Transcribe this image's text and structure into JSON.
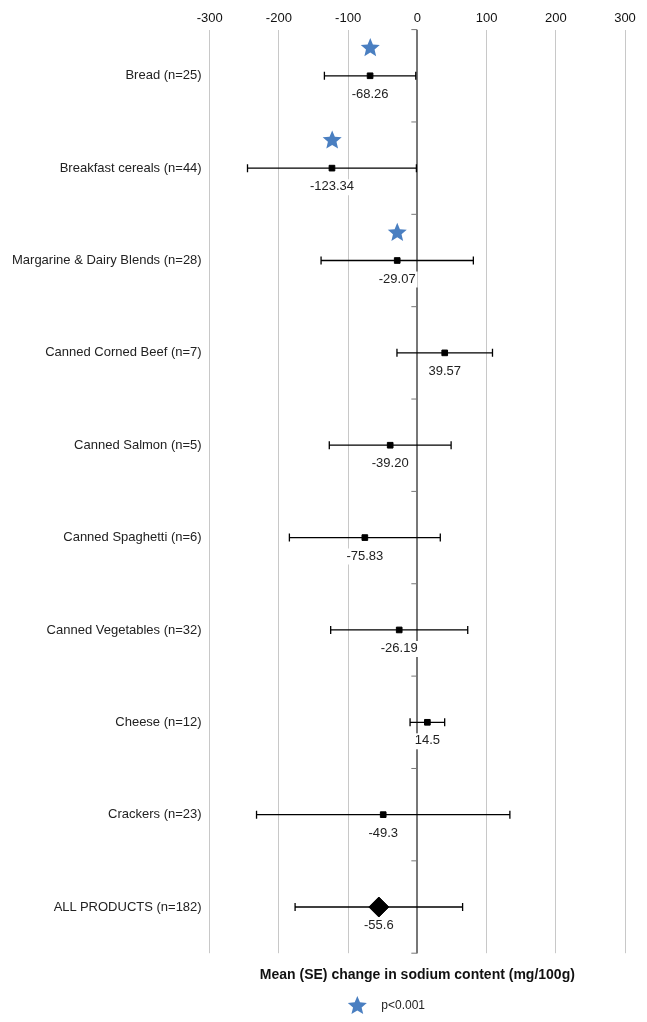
{
  "chart_data": {
    "type": "scatter",
    "orientation": "horizontal",
    "categories": [
      "Bread (n=25)",
      "Breakfast cereals (n=44)",
      "Margarine & Dairy Blends (n=28)",
      "Canned Corned Beef (n=7)",
      "Canned Salmon (n=5)",
      "Canned Spaghetti (n=6)",
      "Canned Vegetables (n=32)",
      "Cheese (n=12)",
      "Crackers (n=23)",
      "ALL PRODUCTS (n=182)"
    ],
    "xlabel": "Mean (SE) change in sodium content (mg/100g)",
    "xlim": [
      -300,
      300
    ],
    "xticks": [
      -300,
      -200,
      -100,
      0,
      100,
      200,
      300
    ],
    "grid": "x",
    "legend": "bottom",
    "series": [
      {
        "marker": "square",
        "color": "#000000",
        "values": [
          -68.26,
          -123.34,
          -29.07,
          39.57,
          -39.2,
          -75.83,
          -26.19,
          14.5,
          -49.3,
          null
        ],
        "errors": [
          66,
          122,
          110,
          69,
          88,
          109,
          99,
          25,
          183,
          null
        ],
        "value_labels": [
          "-68.26",
          "-123.34",
          "-29.07",
          "39.57",
          "-39.20",
          "-75.83",
          "-26.19",
          "14.5",
          "-49.3",
          null
        ]
      },
      {
        "marker": "diamond",
        "color": "#000000",
        "values": [
          null,
          null,
          null,
          null,
          null,
          null,
          null,
          null,
          null,
          -55.6
        ],
        "errors": [
          null,
          null,
          null,
          null,
          null,
          null,
          null,
          null,
          null,
          121
        ],
        "value_labels": [
          null,
          null,
          null,
          null,
          null,
          null,
          null,
          null,
          null,
          "-55.6"
        ]
      },
      {
        "name": "p<0.001",
        "marker": "star",
        "color": "#4a7fc1",
        "values": [
          -68,
          -123,
          -29,
          null,
          null,
          null,
          null,
          null,
          null,
          null
        ]
      }
    ]
  }
}
